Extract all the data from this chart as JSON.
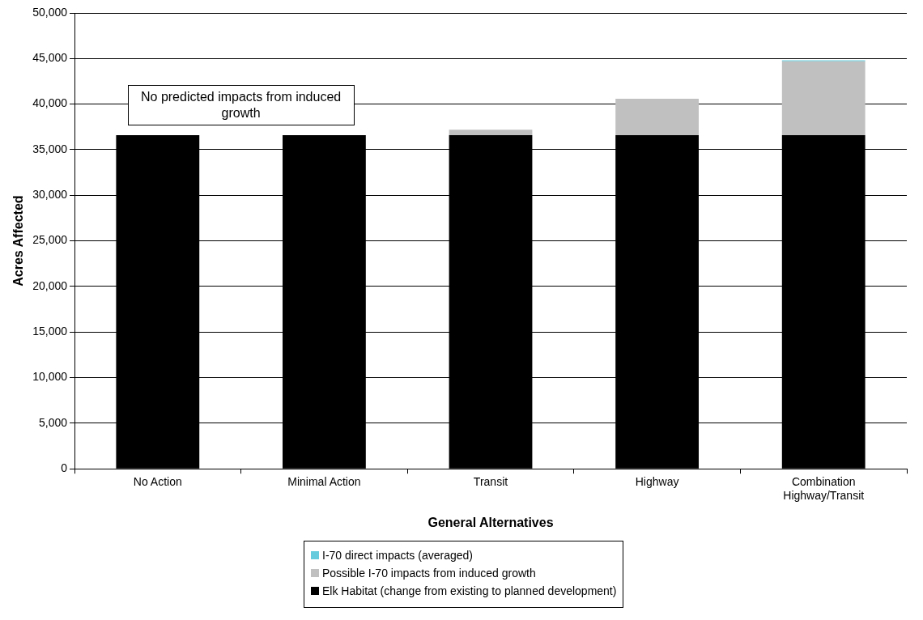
{
  "chart_data": {
    "type": "bar",
    "stacked": true,
    "xlabel": "General Alternatives",
    "ylabel": "Acres Affected",
    "categories": [
      "No Action",
      "Minimal Action",
      "Transit",
      "Highway",
      "Combination Highway/Transit"
    ],
    "series": [
      {
        "name": "Elk Habitat (change from existing to planned development)",
        "color": "#000000",
        "values": [
          36600,
          36600,
          36600,
          36600,
          36600
        ]
      },
      {
        "name": "Possible I-70 impacts from induced growth",
        "color": "#c0c0c0",
        "values": [
          0,
          0,
          600,
          4000,
          8100
        ]
      },
      {
        "name": "I-70 direct impacts (averaged)",
        "color": "#66ccdd",
        "values": [
          0,
          0,
          0,
          0,
          100
        ]
      }
    ],
    "ylim": [
      0,
      50000
    ],
    "yticks": [
      {
        "value": 0,
        "label": "0"
      },
      {
        "value": 5000,
        "label": "5,000"
      },
      {
        "value": 10000,
        "label": "10,000"
      },
      {
        "value": 15000,
        "label": "15,000"
      },
      {
        "value": 20000,
        "label": "20,000"
      },
      {
        "value": 25000,
        "label": "25,000"
      },
      {
        "value": 30000,
        "label": "30,000"
      },
      {
        "value": 35000,
        "label": "35,000"
      },
      {
        "value": 40000,
        "label": "40,000"
      },
      {
        "value": 45000,
        "label": "45,000"
      },
      {
        "value": 50000,
        "label": "50,000"
      }
    ],
    "grid": "y",
    "legend": "bottom",
    "annotations": [
      "No predicted impacts from induced growth"
    ]
  }
}
